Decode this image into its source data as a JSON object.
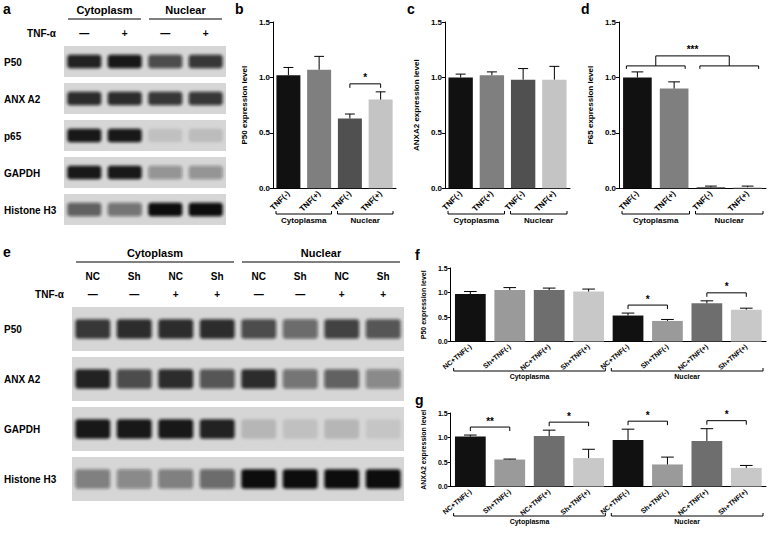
{
  "blots": [
    {
      "panel": "a",
      "groups": [
        {
          "label": "Cytoplasm",
          "lanes": 2
        },
        {
          "label": "Nuclear",
          "lanes": 2
        }
      ],
      "conditions": [
        {
          "label": "TNF-α",
          "values": [
            "—",
            "+",
            "—",
            "+"
          ]
        }
      ],
      "bands": [
        {
          "label": "P50",
          "intensity": [
            0.9,
            0.95,
            0.7,
            0.8
          ]
        },
        {
          "label": "ANX A2",
          "intensity": [
            0.85,
            0.85,
            0.8,
            0.8
          ]
        },
        {
          "label": "p65",
          "intensity": [
            0.95,
            0.95,
            0.1,
            0.12
          ]
        },
        {
          "label": "GAPDH",
          "intensity": [
            0.95,
            0.95,
            0.35,
            0.35
          ]
        },
        {
          "label": "Histone H3",
          "intensity": [
            0.6,
            0.5,
            1,
            1
          ]
        }
      ]
    },
    {
      "panel": "e",
      "groups": [
        {
          "label": "Cytoplasm",
          "lanes": 4
        },
        {
          "label": "Nuclear",
          "lanes": 4
        }
      ],
      "conditions": [
        {
          "values": [
            "NC",
            "Sh",
            "NC",
            "Sh",
            "NC",
            "Sh",
            "NC",
            "Sh"
          ]
        },
        {
          "label": "TNF-α",
          "values": [
            "—",
            "—",
            "+",
            "+",
            "—",
            "—",
            "+",
            "+"
          ]
        }
      ],
      "bands": [
        {
          "label": "P50",
          "intensity": [
            0.8,
            0.85,
            0.85,
            0.85,
            0.7,
            0.55,
            0.75,
            0.65
          ]
        },
        {
          "label": "ANX A2",
          "intensity": [
            0.9,
            0.7,
            0.85,
            0.65,
            0.85,
            0.5,
            0.6,
            0.4
          ]
        },
        {
          "label": "GAPDH",
          "intensity": [
            0.95,
            0.95,
            0.95,
            0.9,
            0.15,
            0.1,
            0.15,
            0.08
          ]
        },
        {
          "label": "Histone H3",
          "intensity": [
            0.45,
            0.4,
            0.45,
            0.55,
            1,
            1,
            1,
            1
          ]
        }
      ]
    }
  ],
  "chart_data": [
    {
      "panel": "b",
      "type": "bar",
      "ylabel": "P50 expression level",
      "categories": [
        "TNF(-)",
        "TNF(+)",
        "TNF(-)",
        "TNF(+)"
      ],
      "values": [
        1.02,
        1.07,
        0.63,
        0.8
      ],
      "errors": [
        0.07,
        0.12,
        0.04,
        0.07
      ],
      "colors": [
        "#111111",
        "#7f7f7f",
        "#505050",
        "#c4c4c4"
      ],
      "groups": [
        {
          "label": "Cytoplasma",
          "count": 2
        },
        {
          "label": "Nuclear",
          "count": 2
        }
      ],
      "significance": [
        {
          "from": 2,
          "to": 3,
          "label": "*"
        }
      ],
      "ylim": [
        0,
        1.5
      ],
      "yticks": [
        {
          "value": 0,
          "label": "0.0"
        },
        0.5,
        {
          "value": 1,
          "label": "1.0"
        },
        1.5
      ]
    },
    {
      "panel": "c",
      "type": "bar",
      "ylabel": "ANXA2 expression level",
      "categories": [
        "TNF(-)",
        "TNF(+)",
        "TNF(-)",
        "TNF(+)"
      ],
      "values": [
        1.0,
        1.02,
        0.98,
        0.98
      ],
      "errors": [
        0.03,
        0.03,
        0.1,
        0.12
      ],
      "colors": [
        "#111111",
        "#7f7f7f",
        "#505050",
        "#c4c4c4"
      ],
      "groups": [
        {
          "label": "Cytoplasma",
          "count": 2
        },
        {
          "label": "Nuclear",
          "count": 2
        }
      ],
      "significance": [],
      "ylim": [
        0,
        1.5
      ],
      "yticks": [
        {
          "value": 0,
          "label": "0.0"
        },
        0.5,
        {
          "value": 1,
          "label": "1.0"
        },
        1.5
      ]
    },
    {
      "panel": "d",
      "type": "bar",
      "ylabel": "P65 expression level",
      "categories": [
        "TNF(-)",
        "TNF(+)",
        "TNF(-)",
        "TNF(+)"
      ],
      "values": [
        1.0,
        0.9,
        0.01,
        0.01
      ],
      "errors": [
        0.05,
        0.06,
        0.01,
        0.01
      ],
      "colors": [
        "#111111",
        "#7f7f7f",
        "#505050",
        "#c4c4c4"
      ],
      "groups": [
        {
          "label": "Cytoplasma",
          "count": 2
        },
        {
          "label": "Nuclear",
          "count": 2
        }
      ],
      "significance": [
        {
          "from": [
            0,
            1
          ],
          "to": [
            2,
            3
          ],
          "label": "***"
        }
      ],
      "ylim": [
        0,
        1.5
      ],
      "yticks": [
        {
          "value": 0,
          "label": "0.0"
        },
        0.5,
        {
          "value": 1,
          "label": "1.0"
        },
        1.5
      ]
    },
    {
      "panel": "f",
      "type": "bar",
      "ylabel": "P50 expression level",
      "categories": [
        "NC+TNF(-)",
        "Sh+TNF(-)",
        "NC+TNF(+)",
        "Sh+TNF(+)",
        "NC+TNF(-)",
        "Sh+TNF(-)",
        "NC+TNF(+)",
        "Sh+TNF(+)"
      ],
      "values": [
        0.97,
        1.05,
        1.05,
        1.02,
        0.53,
        0.42,
        0.78,
        0.65
      ],
      "errors": [
        0.05,
        0.05,
        0.04,
        0.05,
        0.05,
        0.03,
        0.05,
        0.03
      ],
      "colors": [
        "#111111",
        "#9a9a9a",
        "#6e6e6e",
        "#c8c8c8",
        "#111111",
        "#9a9a9a",
        "#6e6e6e",
        "#c8c8c8"
      ],
      "groups": [
        {
          "label": "Cytoplasma",
          "count": 4
        },
        {
          "label": "Nuclear",
          "count": 4
        }
      ],
      "significance": [
        {
          "from": 4,
          "to": 5,
          "label": "*"
        },
        {
          "from": 6,
          "to": 7,
          "label": "*"
        }
      ],
      "ylim": [
        0,
        1.5
      ],
      "yticks": [
        {
          "value": 0,
          "label": "0.0"
        },
        0.5,
        {
          "value": 1,
          "label": "1.0"
        },
        1.5
      ]
    },
    {
      "panel": "g",
      "type": "bar",
      "ylabel": "ANXA2 expression level",
      "categories": [
        "NC+TNF(-)",
        "Sh+TNF(-)",
        "NC+TNF(+)",
        "Sh+TNF(+)",
        "NC+TNF(-)",
        "Sh+TNF(-)",
        "NC+TNF(+)",
        "Sh+TNF(+)"
      ],
      "values": [
        1.02,
        0.55,
        1.03,
        0.58,
        0.95,
        0.45,
        0.93,
        0.38
      ],
      "errors": [
        0.03,
        0.01,
        0.12,
        0.18,
        0.22,
        0.15,
        0.25,
        0.05
      ],
      "colors": [
        "#111111",
        "#9a9a9a",
        "#6e6e6e",
        "#c8c8c8",
        "#111111",
        "#9a9a9a",
        "#6e6e6e",
        "#c8c8c8"
      ],
      "groups": [
        {
          "label": "Cytoplasma",
          "count": 4
        },
        {
          "label": "Nuclear",
          "count": 4
        }
      ],
      "significance": [
        {
          "from": 0,
          "to": 1,
          "label": "**"
        },
        {
          "from": 2,
          "to": 3,
          "label": "*"
        },
        {
          "from": 4,
          "to": 5,
          "label": "*"
        },
        {
          "from": 6,
          "to": 7,
          "label": "*"
        }
      ],
      "ylim": [
        0,
        1.5
      ],
      "yticks": [
        {
          "value": 0,
          "label": "0.0"
        },
        0.5,
        {
          "value": 1,
          "label": "1.0"
        },
        1.5
      ]
    }
  ]
}
